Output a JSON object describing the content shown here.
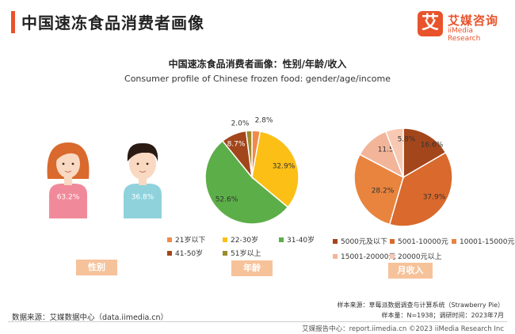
{
  "header": {
    "title": "中国速冻食品消费者画像",
    "logo_mark": "艾",
    "logo_cn": "艾媒咨询",
    "logo_en": "iiMedia Research"
  },
  "chart_title": "中国速冻食品消费者画像：性别/年龄/收入",
  "chart_subtitle": "Consumer profile of Chinese frozen food: gender/age/income",
  "chart_data": [
    {
      "type": "pictogram",
      "tag": "性别",
      "categories": [
        "女",
        "男"
      ],
      "values": [
        63.2,
        36.8
      ],
      "labels": [
        "63.2%",
        "36.8%"
      ]
    },
    {
      "type": "pie",
      "tag": "年龄",
      "categories": [
        "21岁以下",
        "22-30岁",
        "31-40岁",
        "41-50岁",
        "51岁以上"
      ],
      "values": [
        2.8,
        32.9,
        52.6,
        8.7,
        2.0
      ],
      "labels": [
        "2.8%",
        "32.9%",
        "52.6%",
        "8.7%",
        "2.0%"
      ],
      "colors": [
        "#f08a4b",
        "#fbbf16",
        "#5cae48",
        "#a3461c",
        "#9a8b2d"
      ]
    },
    {
      "type": "pie",
      "tag": "月收入",
      "categories": [
        "5000元及以下",
        "5001-10000元",
        "10001-15000元",
        "15001-20000元",
        "20000元以上"
      ],
      "values": [
        16.6,
        37.9,
        28.2,
        11.5,
        5.8
      ],
      "labels": [
        "16.6%",
        "37.9%",
        "28.2%",
        "11.5%",
        "5.8%"
      ],
      "colors": [
        "#a3461c",
        "#d9692c",
        "#e8843e",
        "#f3b59a",
        "#f7c9b3"
      ]
    }
  ],
  "gender_colors": {
    "female_hair": "#d9692c",
    "female_skin": "#f9d9c2",
    "female_body": "#f08a9a",
    "male_hair": "#2a1a14",
    "male_skin": "#f9d9c2",
    "male_body": "#8fd2dc"
  },
  "source": {
    "left": "数据来源：艾媒数据中心（data.iimedia.cn）",
    "right1": "样本来源：草莓派数据调查与计算系统（Strawberry Pie）",
    "right2": "样本量：N=1938；调研时间：2023年7月"
  },
  "footer": "艾媒报告中心：report.iimedia.cn    ©2023  iiMedia Research  Inc"
}
